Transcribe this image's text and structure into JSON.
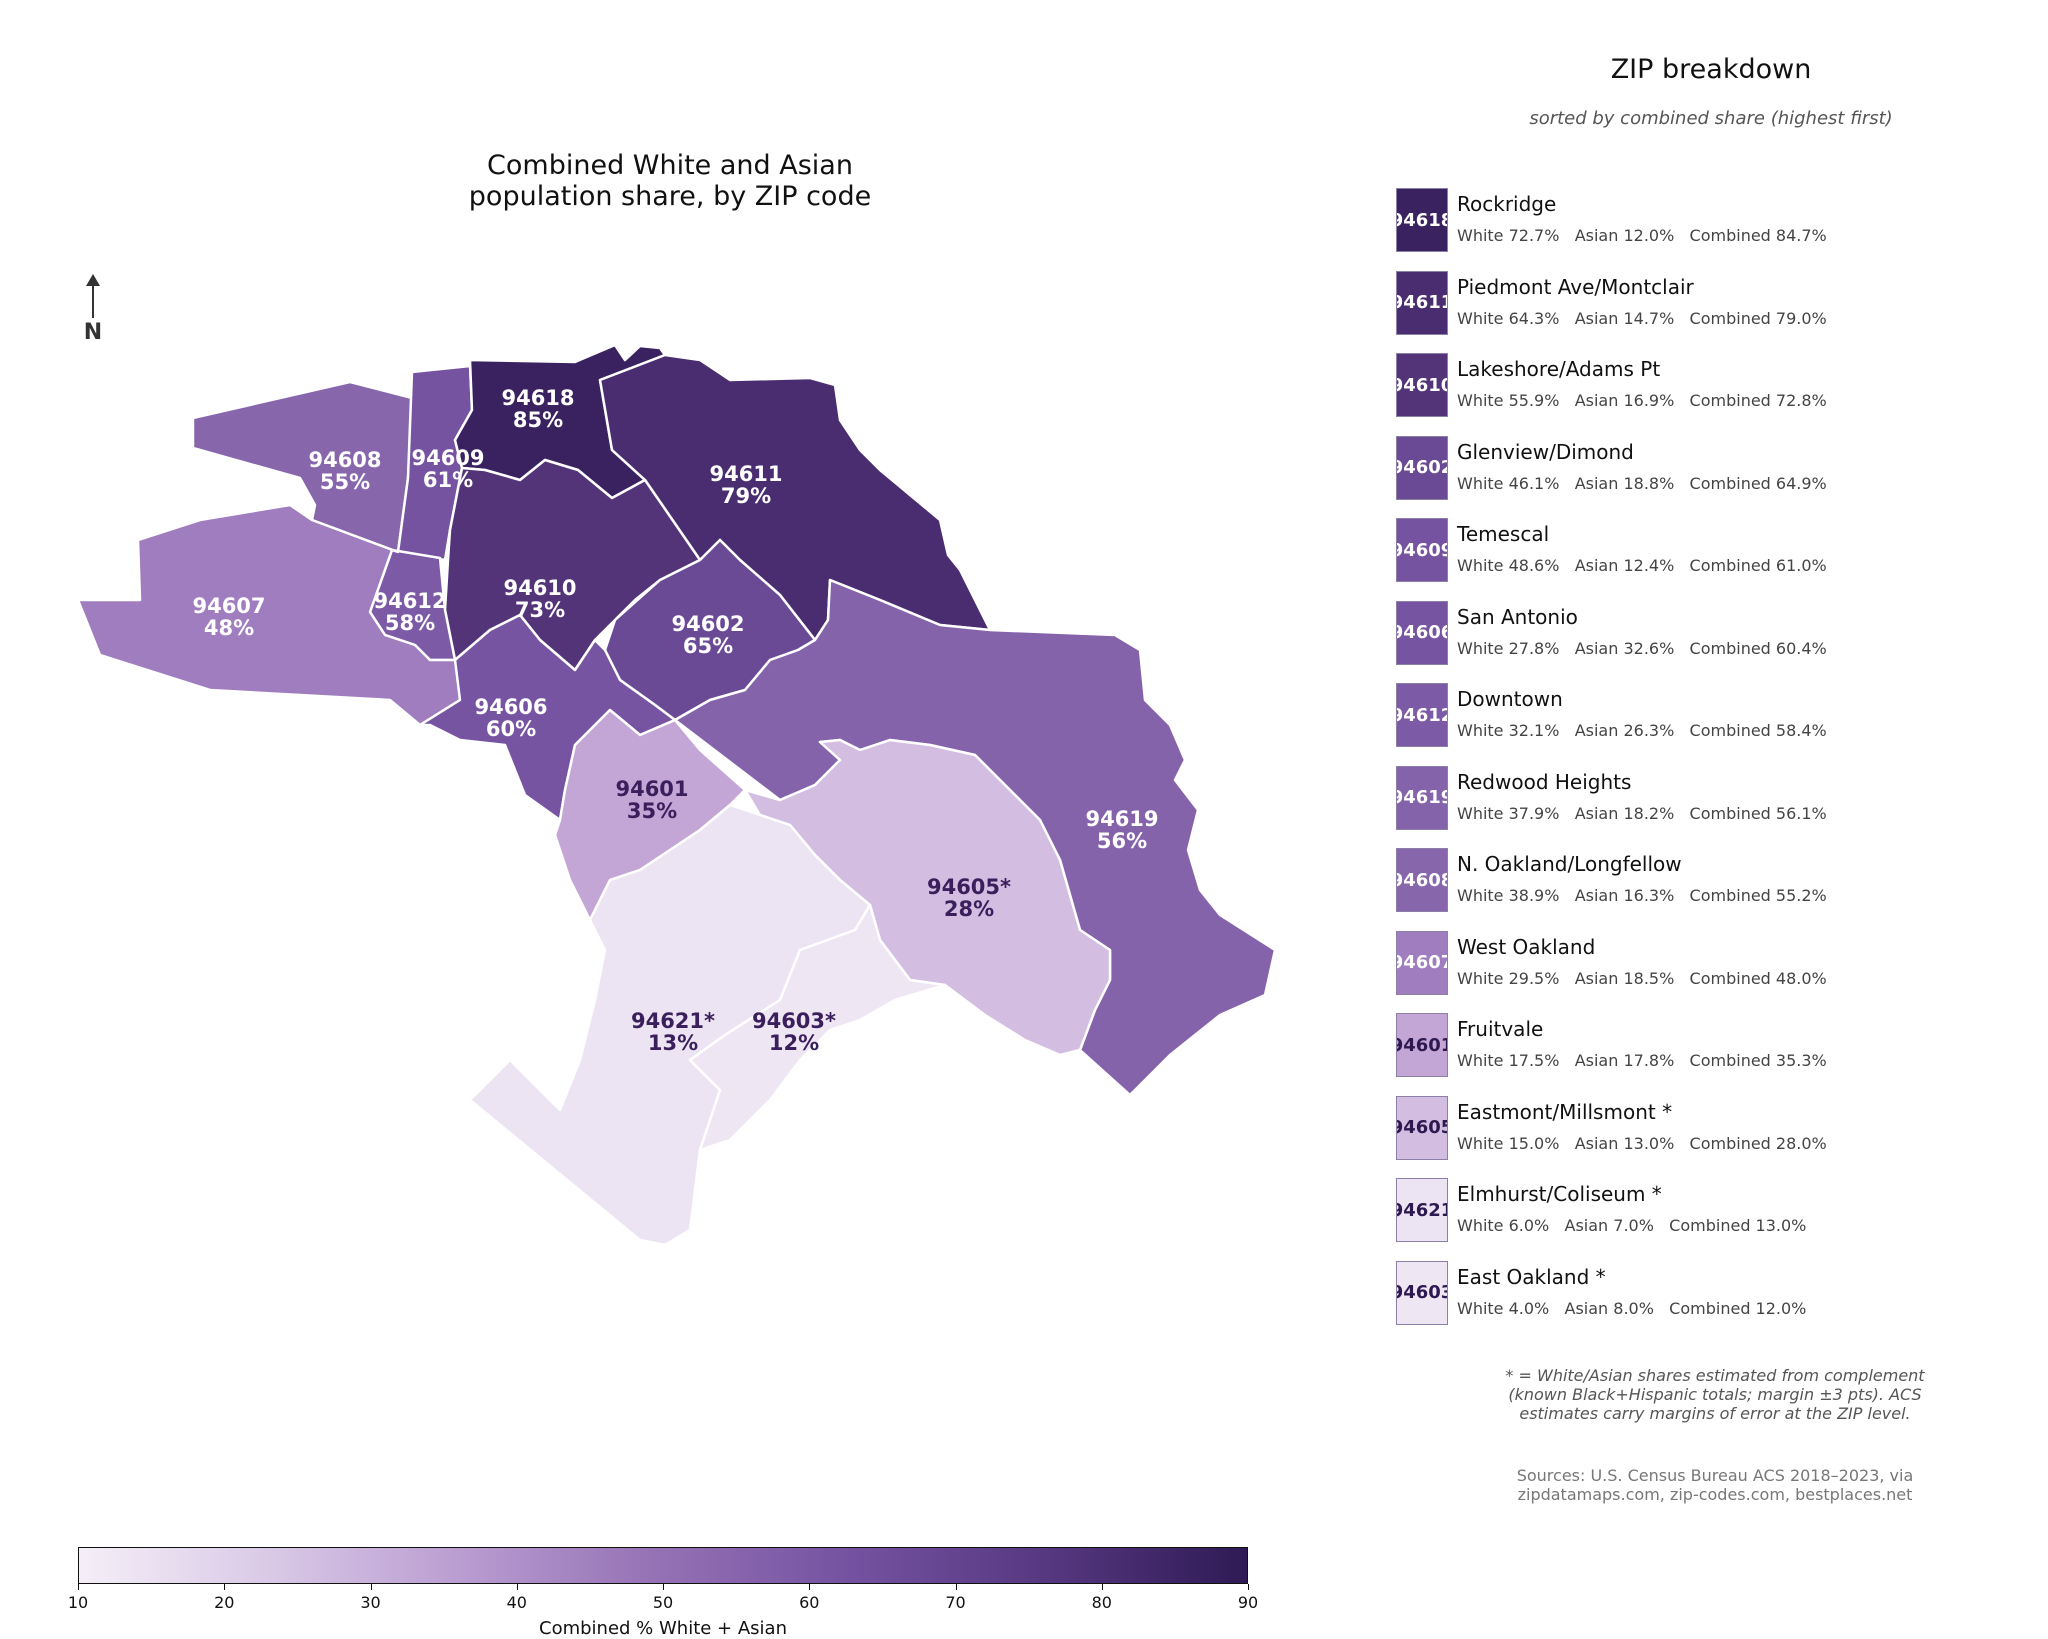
{
  "map": {
    "title_line1": "Combined White and Asian",
    "title_line2": "population share, by ZIP code",
    "north_label": "N"
  },
  "zips": [
    {
      "zip": "94618",
      "label": "94618",
      "pct": "85%",
      "value": 84.7,
      "fill": "#3a2260",
      "text": "#ffffff"
    },
    {
      "zip": "94611",
      "label": "94611",
      "pct": "79%",
      "value": 79.0,
      "fill": "#4a2d70",
      "text": "#ffffff"
    },
    {
      "zip": "94610",
      "label": "94610",
      "pct": "73%",
      "value": 72.8,
      "fill": "#533479",
      "text": "#ffffff"
    },
    {
      "zip": "94602",
      "label": "94602",
      "pct": "65%",
      "value": 64.9,
      "fill": "#6b4a95",
      "text": "#ffffff"
    },
    {
      "zip": "94609",
      "label": "94609",
      "pct": "61%",
      "value": 61.0,
      "fill": "#7653a1",
      "text": "#ffffff"
    },
    {
      "zip": "94606",
      "label": "94606",
      "pct": "60%",
      "value": 60.4,
      "fill": "#7754a2",
      "text": "#ffffff"
    },
    {
      "zip": "94612",
      "label": "94612",
      "pct": "58%",
      "value": 58.4,
      "fill": "#7c5aa6",
      "text": "#ffffff"
    },
    {
      "zip": "94619",
      "label": "94619",
      "pct": "56%",
      "value": 56.1,
      "fill": "#8563ab",
      "text": "#ffffff"
    },
    {
      "zip": "94608",
      "label": "94608",
      "pct": "55%",
      "value": 55.2,
      "fill": "#8766ac",
      "text": "#ffffff"
    },
    {
      "zip": "94607",
      "label": "94607",
      "pct": "48%",
      "value": 48.0,
      "fill": "#a07dbe",
      "text": "#ffffff"
    },
    {
      "zip": "94601",
      "label": "94601",
      "pct": "35%",
      "value": 35.3,
      "fill": "#c3a6d6",
      "text": "#3a1f5c"
    },
    {
      "zip": "94605",
      "label": "94605*",
      "pct": "28%",
      "value": 28.0,
      "fill": "#d3bde1",
      "text": "#3a1f5c"
    },
    {
      "zip": "94621",
      "label": "94621*",
      "pct": "13%",
      "value": 13.0,
      "fill": "#ede4f3",
      "text": "#3a1f5c"
    },
    {
      "zip": "94603",
      "label": "94603*",
      "pct": "12%",
      "value": 12.0,
      "fill": "#efe6f4",
      "text": "#3a1f5c"
    }
  ],
  "panel": {
    "title": "ZIP breakdown",
    "subtitle": "sorted by combined share (highest first)",
    "rows": [
      {
        "zip": "94618",
        "name": "Rockridge",
        "stats": "White 72.7%   Asian 12.0%   Combined 84.7%",
        "fill": "#3a2260",
        "text": "#ffffff"
      },
      {
        "zip": "94611",
        "name": "Piedmont Ave/Montclair",
        "stats": "White 64.3%   Asian 14.7%   Combined 79.0%",
        "fill": "#4a2d70",
        "text": "#ffffff"
      },
      {
        "zip": "94610",
        "name": "Lakeshore/Adams Pt",
        "stats": "White 55.9%   Asian 16.9%   Combined 72.8%",
        "fill": "#533479",
        "text": "#ffffff"
      },
      {
        "zip": "94602",
        "name": "Glenview/Dimond",
        "stats": "White 46.1%   Asian 18.8%   Combined 64.9%",
        "fill": "#6b4a95",
        "text": "#ffffff"
      },
      {
        "zip": "94609",
        "name": "Temescal",
        "stats": "White 48.6%   Asian 12.4%   Combined 61.0%",
        "fill": "#7653a1",
        "text": "#ffffff"
      },
      {
        "zip": "94606",
        "name": "San Antonio",
        "stats": "White 27.8%   Asian 32.6%   Combined 60.4%",
        "fill": "#7754a2",
        "text": "#ffffff"
      },
      {
        "zip": "94612",
        "name": "Downtown",
        "stats": "White 32.1%   Asian 26.3%   Combined 58.4%",
        "fill": "#7c5aa6",
        "text": "#ffffff"
      },
      {
        "zip": "94619",
        "name": "Redwood Heights",
        "stats": "White 37.9%   Asian 18.2%   Combined 56.1%",
        "fill": "#8563ab",
        "text": "#ffffff"
      },
      {
        "zip": "94608",
        "name": "N. Oakland/Longfellow",
        "stats": "White 38.9%   Asian 16.3%   Combined 55.2%",
        "fill": "#8766ac",
        "text": "#ffffff"
      },
      {
        "zip": "94607",
        "name": "West Oakland",
        "stats": "White 29.5%   Asian 18.5%   Combined 48.0%",
        "fill": "#a07dbe",
        "text": "#ffffff"
      },
      {
        "zip": "94601",
        "name": "Fruitvale",
        "stats": "White 17.5%   Asian 17.8%   Combined 35.3%",
        "fill": "#c3a6d6",
        "text": "#2d1850"
      },
      {
        "zip": "94605",
        "name": "Eastmont/Millsmont *",
        "stats": "White 15.0%   Asian 13.0%   Combined 28.0%",
        "fill": "#d3bde1",
        "text": "#2d1850"
      },
      {
        "zip": "94621",
        "name": "Elmhurst/Coliseum *",
        "stats": "White 6.0%   Asian 7.0%   Combined 13.0%",
        "fill": "#ede4f3",
        "text": "#2d1850"
      },
      {
        "zip": "94603",
        "name": "East Oakland *",
        "stats": "White 4.0%   Asian 8.0%   Combined 12.0%",
        "fill": "#efe6f4",
        "text": "#2d1850"
      }
    ],
    "footnote": "* = White/Asian shares estimated from complement (known Black+Hispanic totals; margin ±3 pts). ACS estimates carry margins of error at the ZIP level.",
    "sources": "Sources: U.S. Census Bureau ACS 2018–2023, via zipdatamaps.com, zip-codes.com, bestplaces.net"
  },
  "colorbar": {
    "label": "Combined % White + Asian",
    "min": 10,
    "max": 90,
    "ticks": [
      "10",
      "20",
      "30",
      "40",
      "50",
      "60",
      "70",
      "80",
      "90"
    ],
    "color_stops": [
      "#f5eff8",
      "#d9c8e6",
      "#b89bd0",
      "#9470b4",
      "#7351a0",
      "#55377f",
      "#2f1a55"
    ]
  }
}
